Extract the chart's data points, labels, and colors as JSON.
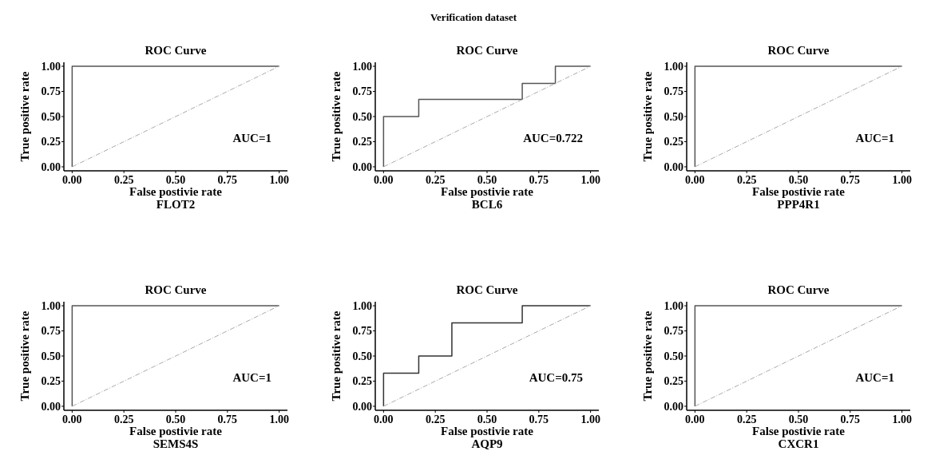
{
  "chart_data": [
    {
      "type": "line",
      "title": "ROC Curve",
      "subtitle": "FLOT2",
      "xlabel": "False postivie rate",
      "ylabel": "True positive rate",
      "annotations": [
        "AUC=1",
        "Verification dataset"
      ],
      "xlim": [
        -0.04,
        1.04
      ],
      "ylim": [
        -0.04,
        1.04
      ],
      "xticks": [
        {
          "value": 0,
          "label": "0.00"
        },
        {
          "value": 0.25,
          "label": "0.25"
        },
        {
          "value": 0.5,
          "label": "0.50"
        },
        {
          "value": 0.75,
          "label": "0.75"
        },
        {
          "value": 1,
          "label": "1.00"
        }
      ],
      "yticks": [
        {
          "value": 0,
          "label": "0.00"
        },
        {
          "value": 0.25,
          "label": "0.25"
        },
        {
          "value": 0.5,
          "label": "0.50"
        },
        {
          "value": 0.75,
          "label": "0.75"
        },
        {
          "value": 1,
          "label": "1.00"
        }
      ],
      "grid": false,
      "series": [
        {
          "color": "#555555",
          "x": [
            0,
            0,
            1
          ],
          "values": [
            0,
            1,
            1
          ],
          "line_style": "solid"
        },
        {
          "color": "#aaaaaa",
          "x": [
            0,
            1
          ],
          "values": [
            0,
            1
          ],
          "line_style": "dashed"
        }
      ]
    },
    {
      "type": "line",
      "title": "ROC Curve",
      "subtitle": "BCL6",
      "xlabel": "False postivie rate",
      "ylabel": "True positive rate",
      "annotations": [
        "AUC=0.722"
      ],
      "xlim": [
        -0.04,
        1.04
      ],
      "ylim": [
        -0.04,
        1.04
      ],
      "xticks": [
        {
          "value": 0,
          "label": "0.00"
        },
        {
          "value": 0.25,
          "label": "0.25"
        },
        {
          "value": 0.5,
          "label": "0.50"
        },
        {
          "value": 0.75,
          "label": "0.75"
        },
        {
          "value": 1,
          "label": "1.00"
        }
      ],
      "yticks": [
        {
          "value": 0,
          "label": "0.00"
        },
        {
          "value": 0.25,
          "label": "0.25"
        },
        {
          "value": 0.5,
          "label": "0.50"
        },
        {
          "value": 0.75,
          "label": "0.75"
        },
        {
          "value": 1,
          "label": "1.00"
        }
      ],
      "grid": false,
      "series": [
        {
          "color": "#555555",
          "x": [
            0,
            0,
            0.17,
            0.17,
            0.67,
            0.67,
            0.83,
            0.83,
            1
          ],
          "values": [
            0,
            0.5,
            0.5,
            0.67,
            0.67,
            0.83,
            0.83,
            1,
            1
          ],
          "line_style": "solid"
        },
        {
          "color": "#aaaaaa",
          "x": [
            0,
            1
          ],
          "values": [
            0,
            1
          ],
          "line_style": "dashed"
        }
      ]
    },
    {
      "type": "line",
      "title": "ROC Curve",
      "subtitle": "PPP4R1",
      "xlabel": "False postivie rate",
      "ylabel": "True positive rate",
      "annotations": [
        "AUC=1"
      ],
      "xlim": [
        -0.04,
        1.04
      ],
      "ylim": [
        -0.04,
        1.04
      ],
      "xticks": [
        {
          "value": 0,
          "label": "0.00"
        },
        {
          "value": 0.25,
          "label": "0.25"
        },
        {
          "value": 0.5,
          "label": "0.50"
        },
        {
          "value": 0.75,
          "label": "0.75"
        },
        {
          "value": 1,
          "label": "1.00"
        }
      ],
      "yticks": [
        {
          "value": 0,
          "label": "0.00"
        },
        {
          "value": 0.25,
          "label": "0.25"
        },
        {
          "value": 0.5,
          "label": "0.50"
        },
        {
          "value": 0.75,
          "label": "0.75"
        },
        {
          "value": 1,
          "label": "1.00"
        }
      ],
      "grid": false,
      "series": [
        {
          "color": "#555555",
          "x": [
            0,
            0,
            1
          ],
          "values": [
            0,
            1,
            1
          ],
          "line_style": "solid"
        },
        {
          "color": "#aaaaaa",
          "x": [
            0,
            1
          ],
          "values": [
            0,
            1
          ],
          "line_style": "dashed"
        }
      ]
    },
    {
      "type": "line",
      "title": "ROC Curve",
      "subtitle": "SEMS4S",
      "xlabel": "False postivie rate",
      "ylabel": "True positive rate",
      "annotations": [
        "AUC=1"
      ],
      "xlim": [
        -0.04,
        1.04
      ],
      "ylim": [
        -0.04,
        1.04
      ],
      "xticks": [
        {
          "value": 0,
          "label": "0.00"
        },
        {
          "value": 0.25,
          "label": "0.25"
        },
        {
          "value": 0.5,
          "label": "0.50"
        },
        {
          "value": 0.75,
          "label": "0.75"
        },
        {
          "value": 1,
          "label": "1.00"
        }
      ],
      "yticks": [
        {
          "value": 0,
          "label": "0.00"
        },
        {
          "value": 0.25,
          "label": "0.25"
        },
        {
          "value": 0.5,
          "label": "0.50"
        },
        {
          "value": 0.75,
          "label": "0.75"
        },
        {
          "value": 1,
          "label": "1.00"
        }
      ],
      "grid": false,
      "series": [
        {
          "color": "#555555",
          "x": [
            0,
            0,
            1
          ],
          "values": [
            0,
            1,
            1
          ],
          "line_style": "solid"
        },
        {
          "color": "#aaaaaa",
          "x": [
            0,
            1
          ],
          "values": [
            0,
            1
          ],
          "line_style": "dashed"
        }
      ]
    },
    {
      "type": "line",
      "title": "ROC Curve",
      "subtitle": "AQP9",
      "xlabel": "False postivie rate",
      "ylabel": "True positive rate",
      "annotations": [
        "AUC=0.75"
      ],
      "xlim": [
        -0.04,
        1.04
      ],
      "ylim": [
        -0.04,
        1.04
      ],
      "xticks": [
        {
          "value": 0,
          "label": "0.00"
        },
        {
          "value": 0.25,
          "label": "0.25"
        },
        {
          "value": 0.5,
          "label": "0.50"
        },
        {
          "value": 0.75,
          "label": "0.75"
        },
        {
          "value": 1,
          "label": "1.00"
        }
      ],
      "yticks": [
        {
          "value": 0,
          "label": "0.00"
        },
        {
          "value": 0.25,
          "label": "0.25"
        },
        {
          "value": 0.5,
          "label": "0.50"
        },
        {
          "value": 0.75,
          "label": "0.75"
        },
        {
          "value": 1,
          "label": "1.00"
        }
      ],
      "grid": false,
      "series": [
        {
          "color": "#333333",
          "x": [
            0,
            0,
            0.17,
            0.17,
            0.33,
            0.33,
            0.67,
            0.67,
            1
          ],
          "values": [
            0,
            0.33,
            0.33,
            0.5,
            0.5,
            0.83,
            0.83,
            1,
            1
          ],
          "line_style": "solid"
        },
        {
          "color": "#aaaaaa",
          "x": [
            0,
            1
          ],
          "values": [
            0,
            1
          ],
          "line_style": "dashed"
        }
      ]
    },
    {
      "type": "line",
      "title": "ROC Curve",
      "subtitle": "CXCR1",
      "xlabel": "False postivie rate",
      "ylabel": "True positive rate",
      "annotations": [
        "AUC=1"
      ],
      "xlim": [
        -0.04,
        1.04
      ],
      "ylim": [
        -0.04,
        1.04
      ],
      "xticks": [
        {
          "value": 0,
          "label": "0.00"
        },
        {
          "value": 0.25,
          "label": "0.25"
        },
        {
          "value": 0.5,
          "label": "0.50"
        },
        {
          "value": 0.75,
          "label": "0.75"
        },
        {
          "value": 1,
          "label": "1.00"
        }
      ],
      "yticks": [
        {
          "value": 0,
          "label": "0.00"
        },
        {
          "value": 0.25,
          "label": "0.25"
        },
        {
          "value": 0.5,
          "label": "0.50"
        },
        {
          "value": 0.75,
          "label": "0.75"
        },
        {
          "value": 1,
          "label": "1.00"
        }
      ],
      "grid": false,
      "series": [
        {
          "color": "#555555",
          "x": [
            0,
            0,
            1
          ],
          "values": [
            0,
            1,
            1
          ],
          "line_style": "solid"
        },
        {
          "color": "#aaaaaa",
          "x": [
            0,
            1
          ],
          "values": [
            0,
            1
          ],
          "line_style": "dashed"
        }
      ]
    }
  ]
}
